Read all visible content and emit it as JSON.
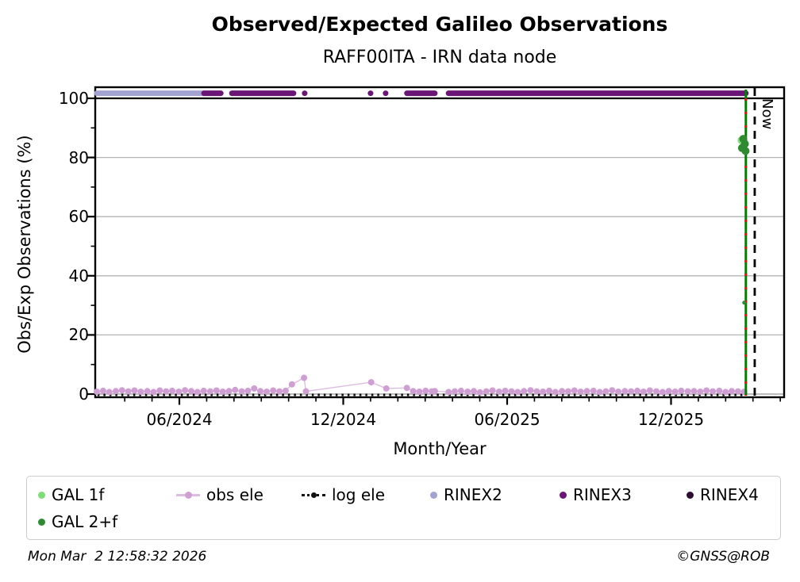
{
  "title": "Observed/Expected Galileo Observations",
  "subtitle": "RAFF00ITA - IRN data node",
  "footer": {
    "timestamp": "Mon Mar  2 12:58:32 2026",
    "copyright": "©GNSS@ROB"
  },
  "colors": {
    "gal_1f": "#7fdd78",
    "gal_2f": "#2e8b32",
    "obs_ele": "#cf9fd4",
    "obs_ele_line": "#ddbce2",
    "log_ele": "#111111",
    "rinex2": "#a3a3d1",
    "rinex3": "#6b1577",
    "rinex4": "#2c0e33",
    "latest_line": "#008000",
    "latest_dash": "#dd1111",
    "now_line": "#000000",
    "grid": "#b3b3b3",
    "zero_line": "#a6a6a6",
    "frame": "#000000"
  },
  "legend": [
    {
      "label": "GAL 1f",
      "marker": "dot",
      "color_key": "gal_1f"
    },
    {
      "label": "obs ele",
      "marker": "line-dot",
      "color_key": "obs_ele"
    },
    {
      "label": "log ele",
      "marker": "dotted-line",
      "color_key": "log_ele"
    },
    {
      "label": "RINEX2",
      "marker": "dot",
      "color_key": "rinex2"
    },
    {
      "label": "RINEX3",
      "marker": "dot",
      "color_key": "rinex3"
    },
    {
      "label": "RINEX4",
      "marker": "dot",
      "color_key": "rinex4"
    },
    {
      "label": "GAL 2+f",
      "marker": "dot",
      "color_key": "gal_2f"
    }
  ],
  "chart_data": {
    "type": "scatter",
    "title": "Observed/Expected Galileo Observations",
    "subtitle": "RAFF00ITA - IRN data node",
    "xlabel": "Month/Year",
    "ylabel": "Obs/Exp Observations (%)",
    "x_axis": {
      "range_decimal_year": [
        2024.16,
        2026.261
      ],
      "major_ticks": [
        {
          "date": 2024.4167,
          "label": "06/2024"
        },
        {
          "date": 2024.9167,
          "label": "12/2024"
        },
        {
          "date": 2025.4167,
          "label": "06/2025"
        },
        {
          "date": 2025.9167,
          "label": "12/2025"
        }
      ],
      "minor_step_months": 1
    },
    "y_axis": {
      "range": [
        -1.0,
        103.8
      ],
      "major_ticks": [
        0,
        20,
        40,
        60,
        80,
        100
      ],
      "minor_ticks": [
        10,
        30,
        50,
        70,
        90
      ],
      "grid": true
    },
    "hline_100": 100,
    "rinex_band_value": 101.7,
    "now_line": {
      "date": 2026.172,
      "label": "Now"
    },
    "latest_line": {
      "date": 2026.145
    },
    "log_ele": {
      "value": 0.0,
      "range": [
        2024.167,
        2026.145
      ]
    },
    "rinex2_segments": [
      [
        2024.165,
        2024.492
      ]
    ],
    "rinex3_segments": [
      [
        2024.492,
        2024.543
      ],
      [
        2024.577,
        2024.765
      ],
      [
        2025.111,
        2025.196
      ],
      [
        2025.238,
        2026.145
      ]
    ],
    "rinex3_points": [
      2024.799,
      2025.0,
      2025.046
    ],
    "rinex4_segments": [],
    "gal_1f_points": [
      [
        2026.132,
        85.8
      ]
    ],
    "gal_2f_points": [
      [
        2026.137,
        86.3
      ],
      [
        2026.142,
        84.6
      ],
      [
        2026.133,
        83.2
      ],
      [
        2026.144,
        82.2
      ],
      [
        2026.14,
        30.9,
        2.5
      ]
    ],
    "obs_ele_points": [
      [
        2024.165,
        0.8
      ],
      [
        2024.184,
        1.1
      ],
      [
        2024.203,
        0.7
      ],
      [
        2024.223,
        1.0
      ],
      [
        2024.242,
        1.3
      ],
      [
        2024.261,
        0.9
      ],
      [
        2024.28,
        1.2
      ],
      [
        2024.299,
        0.8
      ],
      [
        2024.319,
        1.0
      ],
      [
        2024.338,
        0.7
      ],
      [
        2024.357,
        1.2
      ],
      [
        2024.376,
        0.9
      ],
      [
        2024.395,
        1.1
      ],
      [
        2024.415,
        0.8
      ],
      [
        2024.434,
        1.3
      ],
      [
        2024.453,
        1.0
      ],
      [
        2024.472,
        0.7
      ],
      [
        2024.491,
        1.1
      ],
      [
        2024.511,
        0.9
      ],
      [
        2024.53,
        1.2
      ],
      [
        2024.549,
        0.8
      ],
      [
        2024.568,
        1.0
      ],
      [
        2024.587,
        1.4
      ],
      [
        2024.607,
        0.9
      ],
      [
        2024.626,
        1.1
      ],
      [
        2024.645,
        1.9
      ],
      [
        2024.664,
        1.0
      ],
      [
        2024.683,
        0.8
      ],
      [
        2024.703,
        1.2
      ],
      [
        2024.722,
        0.9
      ],
      [
        2024.741,
        1.1
      ],
      [
        2024.76,
        3.3
      ],
      [
        2024.797,
        5.5
      ],
      [
        2024.803,
        0.9
      ],
      [
        2025.002,
        4.0
      ],
      [
        2025.048,
        1.9
      ],
      [
        2025.111,
        2.1
      ],
      [
        2025.13,
        1.0
      ],
      [
        2025.149,
        0.8
      ],
      [
        2025.168,
        1.1
      ],
      [
        2025.187,
        0.9
      ],
      [
        2025.196,
        1.0
      ],
      [
        2025.238,
        0.7
      ],
      [
        2025.257,
        0.9
      ],
      [
        2025.276,
        1.1
      ],
      [
        2025.296,
        0.8
      ],
      [
        2025.315,
        1.0
      ],
      [
        2025.334,
        0.6
      ],
      [
        2025.353,
        0.9
      ],
      [
        2025.372,
        1.2
      ],
      [
        2025.392,
        0.8
      ],
      [
        2025.411,
        1.1
      ],
      [
        2025.43,
        0.9
      ],
      [
        2025.449,
        0.7
      ],
      [
        2025.468,
        1.0
      ],
      [
        2025.488,
        1.3
      ],
      [
        2025.507,
        0.9
      ],
      [
        2025.526,
        0.8
      ],
      [
        2025.545,
        1.1
      ],
      [
        2025.564,
        0.7
      ],
      [
        2025.584,
        1.0
      ],
      [
        2025.603,
        0.9
      ],
      [
        2025.622,
        1.2
      ],
      [
        2025.641,
        0.8
      ],
      [
        2025.66,
        1.0
      ],
      [
        2025.68,
        1.1
      ],
      [
        2025.699,
        0.7
      ],
      [
        2025.718,
        0.9
      ],
      [
        2025.737,
        1.3
      ],
      [
        2025.756,
        0.8
      ],
      [
        2025.776,
        1.0
      ],
      [
        2025.795,
        0.9
      ],
      [
        2025.814,
        1.1
      ],
      [
        2025.833,
        0.8
      ],
      [
        2025.852,
        1.2
      ],
      [
        2025.872,
        0.9
      ],
      [
        2025.891,
        0.7
      ],
      [
        2025.91,
        1.0
      ],
      [
        2025.929,
        0.8
      ],
      [
        2025.948,
        1.1
      ],
      [
        2025.968,
        0.9
      ],
      [
        2025.987,
        1.0
      ],
      [
        2026.006,
        0.8
      ],
      [
        2026.025,
        1.2
      ],
      [
        2026.044,
        0.9
      ],
      [
        2026.064,
        1.1
      ],
      [
        2026.083,
        0.7
      ],
      [
        2026.102,
        1.0
      ],
      [
        2026.121,
        0.9
      ],
      [
        2026.14,
        0.8
      ]
    ]
  }
}
